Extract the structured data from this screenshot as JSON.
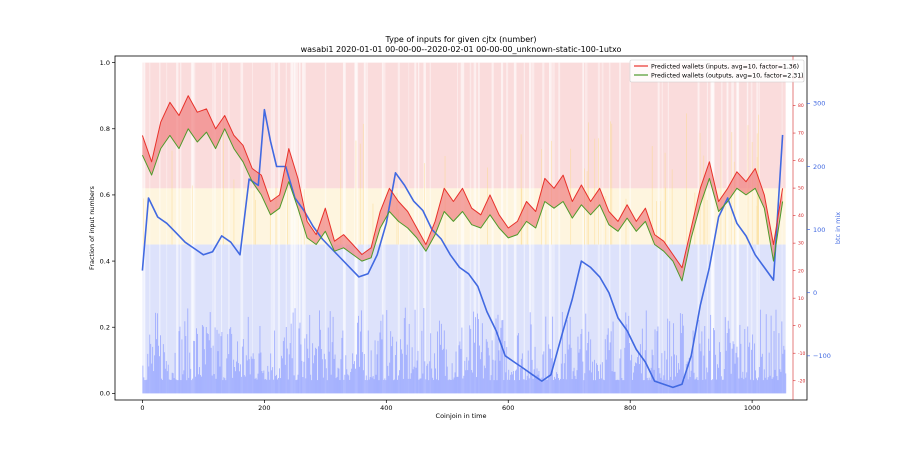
{
  "chart_data": {
    "type": "line",
    "title": "Type of inputs for given cjtx (number)",
    "subtitle": "wasabi1 2020-01-01 00-00-00--2020-02-01 00-00-00_unknown-static-100-1utxo",
    "xlabel": "Coinjoin in time",
    "ylabel": "Fraction of input numbers",
    "y2label": "btc in mix",
    "xlim": [
      -45,
      1090
    ],
    "ylim": [
      -0.02,
      1.02
    ],
    "x_ticks": [
      0,
      200,
      400,
      600,
      800,
      1000
    ],
    "y_ticks": [
      0.0,
      0.2,
      0.4,
      0.6,
      0.8,
      1.0
    ],
    "y2_ticks": [
      -100,
      0,
      100,
      200,
      300
    ],
    "y2_ticks_mid": [
      -10,
      0,
      10,
      20,
      30,
      40,
      50,
      60,
      70,
      80
    ],
    "y2_ticks_mid_outer": [
      -20,
      90
    ],
    "grid": false,
    "legend_position": "top-right",
    "colors": {
      "inputs": "#e8312a",
      "outputs": "#4e9a2a",
      "fill": "#f08080",
      "btc": "#4169e1",
      "band_pink": "#fadcdc",
      "band_yellow": "#fde9b8",
      "band_blue": "#dde2fb",
      "bar_blue": "#8c9cff"
    },
    "series": [
      {
        "name": "Predicted wallets (inputs, avg=10, factor=1.36)",
        "x": [
          0,
          15,
          30,
          45,
          60,
          75,
          90,
          105,
          120,
          135,
          150,
          165,
          180,
          195,
          210,
          225,
          240,
          255,
          270,
          285,
          300,
          315,
          330,
          345,
          360,
          375,
          390,
          405,
          420,
          435,
          450,
          465,
          480,
          495,
          510,
          525,
          540,
          555,
          570,
          585,
          600,
          615,
          630,
          645,
          660,
          675,
          690,
          705,
          720,
          735,
          750,
          765,
          780,
          795,
          810,
          825,
          840,
          855,
          870,
          885,
          900,
          915,
          930,
          945,
          960,
          975,
          990,
          1005,
          1020,
          1035,
          1050
        ],
        "values": [
          0.78,
          0.7,
          0.82,
          0.88,
          0.84,
          0.9,
          0.85,
          0.86,
          0.8,
          0.84,
          0.78,
          0.75,
          0.68,
          0.66,
          0.58,
          0.6,
          0.74,
          0.65,
          0.52,
          0.48,
          0.56,
          0.46,
          0.48,
          0.45,
          0.42,
          0.44,
          0.55,
          0.62,
          0.58,
          0.55,
          0.5,
          0.45,
          0.52,
          0.62,
          0.58,
          0.62,
          0.56,
          0.54,
          0.6,
          0.54,
          0.5,
          0.52,
          0.58,
          0.55,
          0.65,
          0.62,
          0.66,
          0.58,
          0.63,
          0.58,
          0.62,
          0.55,
          0.52,
          0.57,
          0.52,
          0.56,
          0.48,
          0.46,
          0.42,
          0.38,
          0.5,
          0.62,
          0.7,
          0.58,
          0.62,
          0.67,
          0.64,
          0.68,
          0.6,
          0.45,
          0.62
        ]
      },
      {
        "name": "Predicted wallets (outputs, avg=10, factor=2.31)",
        "x": [
          0,
          15,
          30,
          45,
          60,
          75,
          90,
          105,
          120,
          135,
          150,
          165,
          180,
          195,
          210,
          225,
          240,
          255,
          270,
          285,
          300,
          315,
          330,
          345,
          360,
          375,
          390,
          405,
          420,
          435,
          450,
          465,
          480,
          495,
          510,
          525,
          540,
          555,
          570,
          585,
          600,
          615,
          630,
          645,
          660,
          675,
          690,
          705,
          720,
          735,
          750,
          765,
          780,
          795,
          810,
          825,
          840,
          855,
          870,
          885,
          900,
          915,
          930,
          945,
          960,
          975,
          990,
          1005,
          1020,
          1035,
          1050
        ],
        "values": [
          0.72,
          0.66,
          0.74,
          0.78,
          0.74,
          0.8,
          0.76,
          0.79,
          0.74,
          0.8,
          0.74,
          0.7,
          0.64,
          0.6,
          0.54,
          0.56,
          0.64,
          0.56,
          0.47,
          0.45,
          0.49,
          0.43,
          0.44,
          0.42,
          0.4,
          0.41,
          0.5,
          0.55,
          0.52,
          0.5,
          0.47,
          0.43,
          0.48,
          0.55,
          0.52,
          0.55,
          0.51,
          0.5,
          0.54,
          0.5,
          0.47,
          0.48,
          0.52,
          0.5,
          0.58,
          0.56,
          0.58,
          0.53,
          0.57,
          0.54,
          0.57,
          0.51,
          0.49,
          0.53,
          0.49,
          0.52,
          0.45,
          0.43,
          0.4,
          0.34,
          0.47,
          0.57,
          0.65,
          0.55,
          0.58,
          0.62,
          0.6,
          0.62,
          0.56,
          0.4,
          0.58
        ]
      },
      {
        "name": "btc in mix",
        "axis": "y2",
        "y2lim": [
          -170,
          375
        ],
        "x": [
          0,
          10,
          25,
          40,
          55,
          70,
          85,
          100,
          115,
          130,
          145,
          160,
          175,
          190,
          200,
          210,
          220,
          235,
          250,
          265,
          280,
          295,
          310,
          325,
          340,
          355,
          370,
          385,
          400,
          415,
          430,
          445,
          460,
          475,
          490,
          505,
          520,
          535,
          550,
          565,
          580,
          595,
          610,
          625,
          640,
          655,
          670,
          690,
          705,
          720,
          735,
          750,
          765,
          780,
          795,
          810,
          825,
          840,
          855,
          870,
          885,
          900,
          915,
          930,
          945,
          960,
          975,
          990,
          1005,
          1020,
          1035,
          1050
        ],
        "values": [
          35,
          150,
          120,
          110,
          95,
          80,
          70,
          60,
          65,
          90,
          80,
          60,
          180,
          170,
          290,
          240,
          200,
          200,
          150,
          130,
          105,
          85,
          70,
          55,
          40,
          25,
          30,
          60,
          110,
          190,
          170,
          145,
          130,
          100,
          85,
          60,
          40,
          30,
          10,
          -30,
          -60,
          -100,
          -110,
          -120,
          -130,
          -140,
          -130,
          -60,
          -10,
          50,
          40,
          25,
          0,
          -40,
          -60,
          -90,
          -110,
          -140,
          -145,
          -150,
          -145,
          -100,
          -20,
          40,
          120,
          150,
          110,
          90,
          60,
          40,
          20,
          250
        ]
      }
    ]
  }
}
